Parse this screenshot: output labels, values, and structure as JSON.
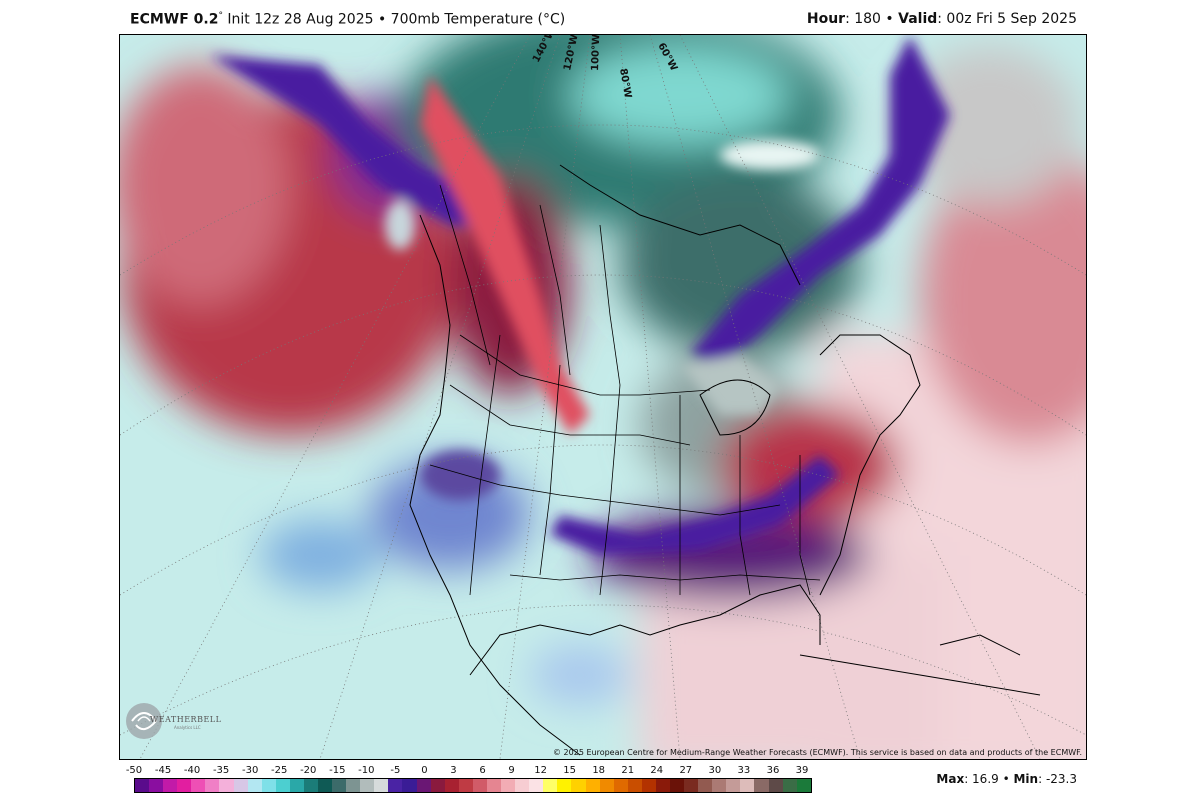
{
  "header": {
    "model": "ECMWF 0.2",
    "degree": "°",
    "init": " Init 12z 28 Aug 2025 • 700mb Temperature (°C)",
    "hour_label": "Hour",
    "hour_value": ": 180 • ",
    "valid_label": "Valid",
    "valid_value": ": 00z Fri 5 Sep 2025"
  },
  "map": {
    "longitude_labels": [
      "140°W",
      "120°W",
      "100°W",
      "80°W",
      "60°W"
    ],
    "copyright": "© 2025 European Centre for Medium-Range Weather Forecasts (ECMWF). This service is based on data and products of the ECMWF.",
    "logo_text": "WEATHERBELL",
    "logo_subtext": "Analytics LLC",
    "logo_icon": "swirl-logo-icon"
  },
  "colorbar": {
    "ticks": [
      "-50",
      "-45",
      "-40",
      "-35",
      "-30",
      "-25",
      "-20",
      "-15",
      "-10",
      "-5",
      "0",
      "3",
      "6",
      "9",
      "12",
      "15",
      "18",
      "21",
      "24",
      "27",
      "30",
      "33",
      "36",
      "39"
    ],
    "colors": [
      "#5a0c8c",
      "#8a0ea0",
      "#c21aa8",
      "#e21ea0",
      "#ee4fb5",
      "#f07fc6",
      "#f4b0da",
      "#d7c7e6",
      "#b3e7f2",
      "#7fe0e8",
      "#4ccfd0",
      "#2aa8a8",
      "#1b7c78",
      "#0f5a55",
      "#3c6b6a",
      "#7d9492",
      "#b1bcbb",
      "#d6dbdb",
      "#4a23a4",
      "#3a1c96",
      "#6a1774",
      "#8a1a3e",
      "#a82131",
      "#bf3b44",
      "#d15b68",
      "#e58591",
      "#f2acb4",
      "#f7cdd2",
      "#fbe2e5",
      "#ffff66",
      "#fff200",
      "#ffd100",
      "#ffb000",
      "#f08a00",
      "#e06a00",
      "#c94e00",
      "#b33200",
      "#8a1a0a",
      "#6a1208",
      "#7a2b20",
      "#925a50",
      "#ab7a74",
      "#c49b98",
      "#ddbcba",
      "#8a6a66",
      "#5e4a48",
      "#3a6d46",
      "#1b7a3a"
    ],
    "max_label": "Max",
    "max_value": ": 16.9 • ",
    "min_label": "Min",
    "min_value": ": -23.3"
  }
}
